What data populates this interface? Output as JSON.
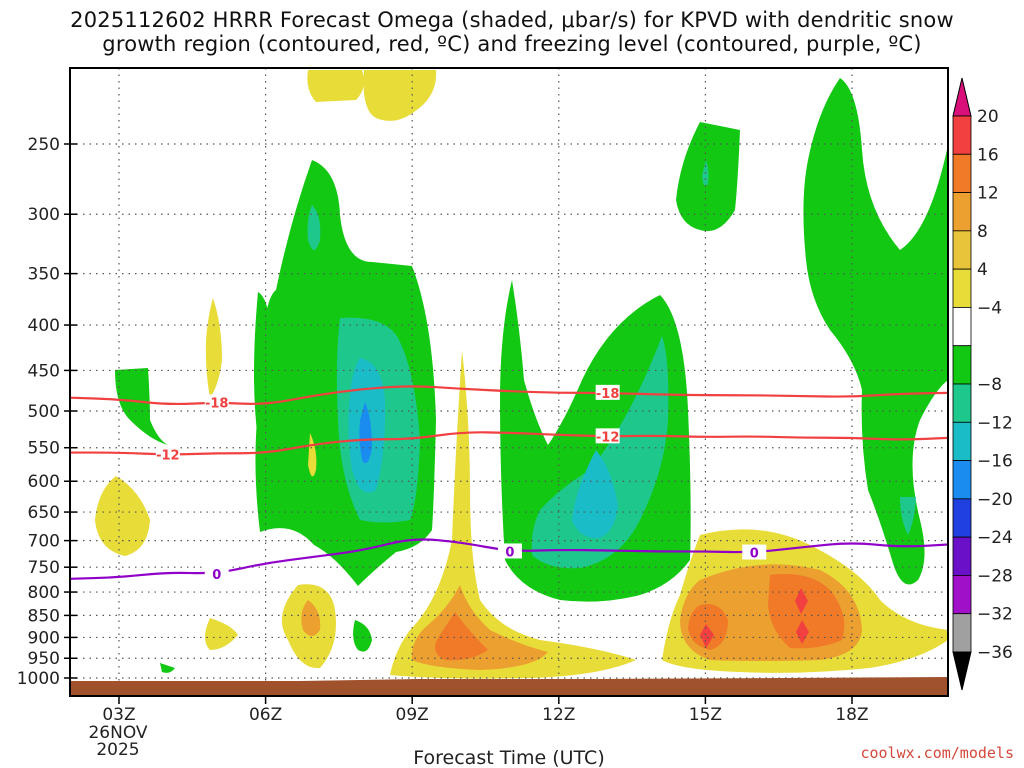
{
  "title_line1": "2025112602 HRRR Forecast Omega (shaded, μbar/s) for KPVD with dendritic snow",
  "title_line2": "growth region (contoured, red, ºC) and freezing level (contoured, purple, ºC)",
  "credit": "coolwx.com/models",
  "chart_data": {
    "type": "heatmap",
    "title": "2025112602 HRRR Forecast Omega (shaded, μbar/s) for KPVD with dendritic snow growth region (contoured, red, ºC) and freezing level (contoured, purple, ºC)",
    "xlabel": "Forecast Time (UTC)",
    "ylabel": "",
    "x_ticks": [
      {
        "hour": 3,
        "label": "03Z",
        "sub1": "26NOV",
        "sub2": "2025"
      },
      {
        "hour": 6,
        "label": "06Z"
      },
      {
        "hour": 9,
        "label": "09Z"
      },
      {
        "hour": 12,
        "label": "12Z"
      },
      {
        "hour": 15,
        "label": "15Z"
      },
      {
        "hour": 18,
        "label": "18Z"
      }
    ],
    "xlim": [
      2,
      20
    ],
    "y_ticks": [
      250,
      300,
      350,
      400,
      450,
      500,
      550,
      600,
      650,
      700,
      750,
      800,
      850,
      900,
      950,
      1000
    ],
    "ylim_hPa": [
      1020,
      200
    ],
    "y_scale": "log",
    "grid": true,
    "colorbar": {
      "labels": [
        "20",
        "16",
        "12",
        "8",
        "4",
        "−4",
        "−8",
        "−12",
        "−16",
        "−20",
        "−24",
        "−28",
        "−32",
        "−36"
      ],
      "colors": [
        "#d9107a",
        "#f24040",
        "#f07a28",
        "#eba030",
        "#e8c43a",
        "#e8dc38",
        "#ffffff",
        "#12c812",
        "#1ec88c",
        "#1abcc8",
        "#1a8cf0",
        "#2040e0",
        "#6a10c8",
        "#a010c8",
        "#a0a0a0",
        "#000000"
      ]
    },
    "contours": [
      {
        "name": "red",
        "value": -18,
        "label": "-18",
        "color": "#f04040",
        "points": [
          [
            2,
            483
          ],
          [
            3,
            485
          ],
          [
            4,
            492
          ],
          [
            5,
            489
          ],
          [
            6,
            492
          ],
          [
            7,
            480
          ],
          [
            8,
            472
          ],
          [
            9,
            468
          ],
          [
            10,
            472
          ],
          [
            11,
            475
          ],
          [
            12,
            477
          ],
          [
            13,
            477
          ],
          [
            14,
            479
          ],
          [
            15,
            480
          ],
          [
            16,
            480
          ],
          [
            17,
            481
          ],
          [
            18,
            482
          ],
          [
            19,
            478
          ],
          [
            20,
            477
          ]
        ]
      },
      {
        "name": "red",
        "value": -12,
        "label": "-12",
        "color": "#f04040",
        "points": [
          [
            2,
            557
          ],
          [
            3,
            557
          ],
          [
            4,
            560
          ],
          [
            5,
            558
          ],
          [
            6,
            558
          ],
          [
            7,
            545
          ],
          [
            8,
            538
          ],
          [
            9,
            538
          ],
          [
            10,
            528
          ],
          [
            11,
            529
          ],
          [
            12,
            532
          ],
          [
            13,
            534
          ],
          [
            14,
            533
          ],
          [
            15,
            535
          ],
          [
            16,
            534
          ],
          [
            17,
            536
          ],
          [
            18,
            536
          ],
          [
            19,
            539
          ],
          [
            20,
            536
          ]
        ]
      },
      {
        "name": "purple",
        "value": 0,
        "label": "0",
        "color": "#9000c8",
        "points": [
          [
            2,
            773
          ],
          [
            3,
            770
          ],
          [
            4,
            760
          ],
          [
            5,
            763
          ],
          [
            6,
            742
          ],
          [
            7,
            730
          ],
          [
            8,
            718
          ],
          [
            9,
            695
          ],
          [
            10,
            703
          ],
          [
            11,
            720
          ],
          [
            12,
            717
          ],
          [
            13,
            718
          ],
          [
            14,
            720
          ],
          [
            15,
            720
          ],
          [
            16,
            722
          ],
          [
            17,
            712
          ],
          [
            18,
            703
          ],
          [
            19,
            712
          ],
          [
            20,
            707
          ]
        ]
      }
    ],
    "shaded_regions": [
      {
        "value": 4,
        "color": "#e8dc38",
        "region": "near 03Z-04Z 650-720"
      },
      {
        "value": -4,
        "color": "#12c812",
        "region": "near 06Z-09Z 280-700"
      },
      {
        "value": -12,
        "color": "#1ec88c",
        "region": "near 08Z 400-670"
      },
      {
        "value": -16,
        "color": "#1a8cf0",
        "region": "near 08Z 520-560"
      },
      {
        "value": -4,
        "color": "#12c812",
        "region": "near 11Z-14Z 380-780"
      },
      {
        "value": -12,
        "color": "#1ec88c",
        "region": "near 13Z 440-740"
      },
      {
        "value": -4,
        "color": "#12c812",
        "region": "near 18Z-20Z 200-780"
      },
      {
        "value": 8,
        "color": "#eba030",
        "region": "near 10Z 850-960"
      },
      {
        "value": 12,
        "color": "#f07a28",
        "region": "near 15Z-17Z 780-940"
      },
      {
        "value": 16,
        "color": "#f24040",
        "region": "near 15Z 890 and 17Z 830-900"
      }
    ]
  }
}
